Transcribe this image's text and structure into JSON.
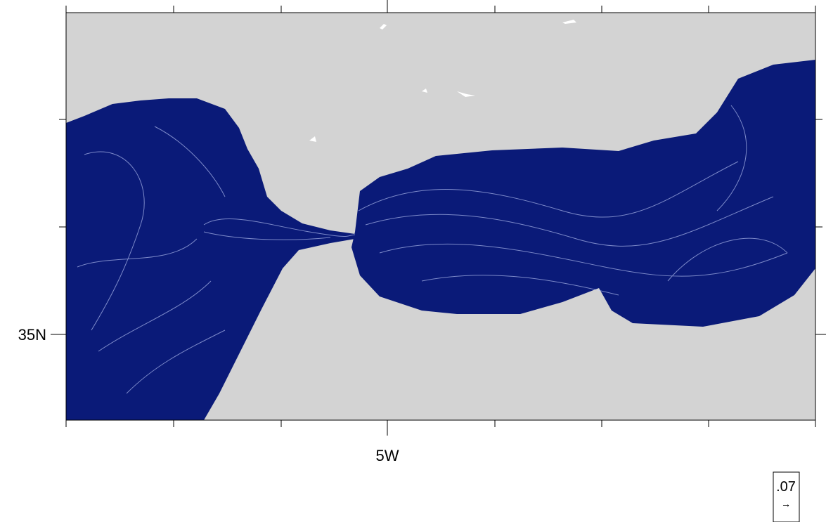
{
  "axes": {
    "y_label": "35N",
    "x_label": "5W"
  },
  "legend": {
    "value": ".07",
    "arrow": "→"
  }
}
